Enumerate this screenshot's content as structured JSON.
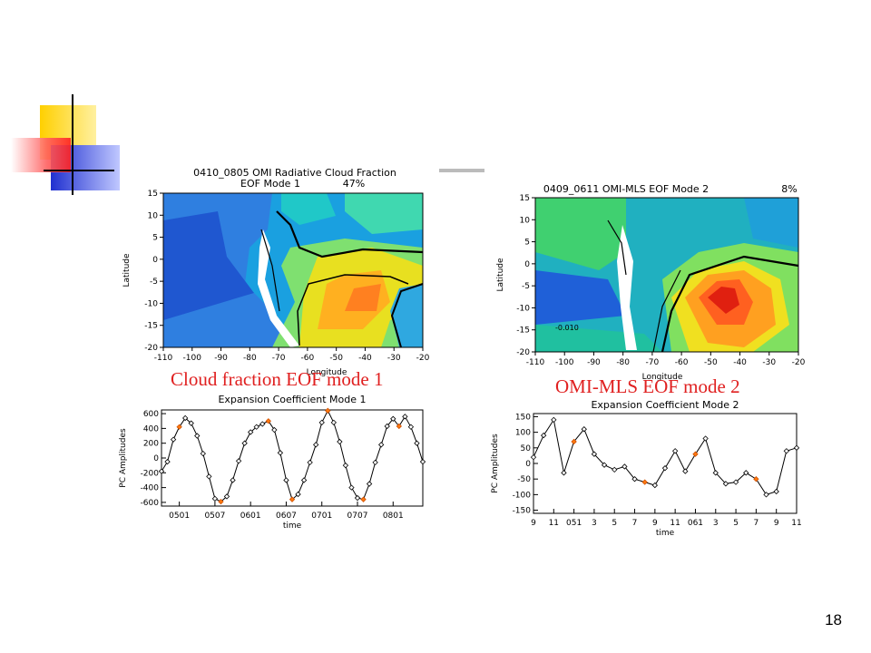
{
  "slide": {
    "number": "18",
    "colors": {
      "caption_red": "#e02020",
      "marker_orange": "#ff7a10"
    }
  },
  "map1": {
    "title_line1": "0410_0805 OMI Radiative Cloud Fraction",
    "title_line2": "EOF Mode 1",
    "title_pct": "47%",
    "xlabel": "Longitude",
    "ylabel": "Latitude",
    "xticks": [
      "-110",
      "-100",
      "-90",
      "-80",
      "-70",
      "-60",
      "-50",
      "-40",
      "-30",
      "-20"
    ],
    "yticks": [
      "15",
      "10",
      "5",
      "0",
      "-5",
      "-10",
      "-15",
      "-20"
    ],
    "caption": "Cloud fraction EOF mode 1"
  },
  "map2": {
    "title": "0409_0611 OMI-MLS EOF Mode 2",
    "title_pct": "8%",
    "xlabel": "Longitude",
    "ylabel": "Latitude",
    "xticks": [
      "-110",
      "-100",
      "-90",
      "-80",
      "-70",
      "-60",
      "-50",
      "-40",
      "-30",
      "-20"
    ],
    "yticks": [
      "15",
      "10",
      "5",
      "0",
      "-5",
      "-10",
      "-15",
      "-20"
    ],
    "contour_label": "-0.010",
    "caption": "OMI-MLS EOF mode 2"
  },
  "chart_data": [
    {
      "type": "line",
      "title": "Expansion Coefficient Mode 1",
      "xlabel": "time",
      "ylabel": "PC Amplitudes",
      "ylim": [
        -650,
        650
      ],
      "yticks": [
        600,
        400,
        200,
        0,
        -200,
        -400,
        -600
      ],
      "xtick_labels": [
        "0501",
        "0507",
        "0601",
        "0607",
        "0701",
        "0707",
        "0801"
      ],
      "xtick_index": [
        3,
        9,
        15,
        21,
        27,
        33,
        39
      ],
      "x_count": 45,
      "values": [
        -180,
        -50,
        250,
        420,
        540,
        470,
        300,
        60,
        -250,
        -550,
        -590,
        -520,
        -300,
        -40,
        200,
        350,
        420,
        460,
        500,
        380,
        70,
        -300,
        -560,
        -490,
        -300,
        -60,
        180,
        480,
        640,
        480,
        220,
        -100,
        -400,
        -540,
        -560,
        -350,
        -60,
        180,
        430,
        530,
        430,
        560,
        420,
        200,
        -50
      ],
      "highlight_index": [
        3,
        10,
        18,
        22,
        28,
        34,
        40
      ],
      "grid": false
    },
    {
      "type": "line",
      "title": "Expansion Coefficient Mode 2",
      "xlabel": "time",
      "ylabel": "PC Amplitudes",
      "ylim": [
        -160,
        160
      ],
      "yticks": [
        150,
        100,
        50,
        0,
        -50,
        -100,
        -150
      ],
      "xtick_labels": [
        "9",
        "11",
        "051",
        "3",
        "5",
        "7",
        "9",
        "11",
        "061",
        "3",
        "5",
        "7",
        "9",
        "11"
      ],
      "xtick_index": [
        0,
        2,
        4,
        6,
        8,
        10,
        12,
        14,
        16,
        18,
        20,
        22,
        24,
        26
      ],
      "x_count": 27,
      "values": [
        20,
        90,
        140,
        -30,
        70,
        110,
        30,
        -5,
        -20,
        -10,
        -50,
        -60,
        -70,
        -15,
        40,
        -25,
        30,
        80,
        -30,
        -65,
        -60,
        -30,
        -50,
        -100,
        -90,
        40,
        50
      ],
      "highlight_index": [
        4,
        11,
        16,
        22
      ],
      "grid": false
    }
  ]
}
